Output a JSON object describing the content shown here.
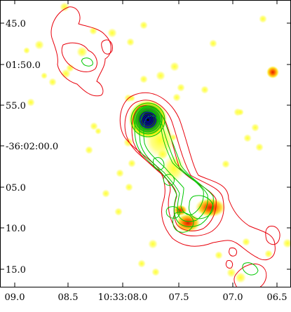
{
  "chart_data": {
    "type": "heatmap",
    "title": "",
    "xlabel": "",
    "ylabel": "",
    "x_tick_labels": [
      "09.0",
      "08.5",
      "10:33:08.0",
      "07.5",
      "07.0",
      "06.5"
    ],
    "y_tick_labels": [
      "45.0",
      "01:50.0",
      "55.0",
      "-36:02:00.0",
      "05.0",
      "10.0",
      "15.0"
    ],
    "grid": false,
    "colors": {
      "frame": "#000000",
      "background": "#ffffff",
      "halo": "#ffff40",
      "map_low": "#ffff00",
      "map_mid": "#ff8000",
      "map_high": "#ff0000",
      "core": "#0000cc",
      "contour_outer": "#e8000b",
      "contour_inner": "#00c800"
    }
  }
}
